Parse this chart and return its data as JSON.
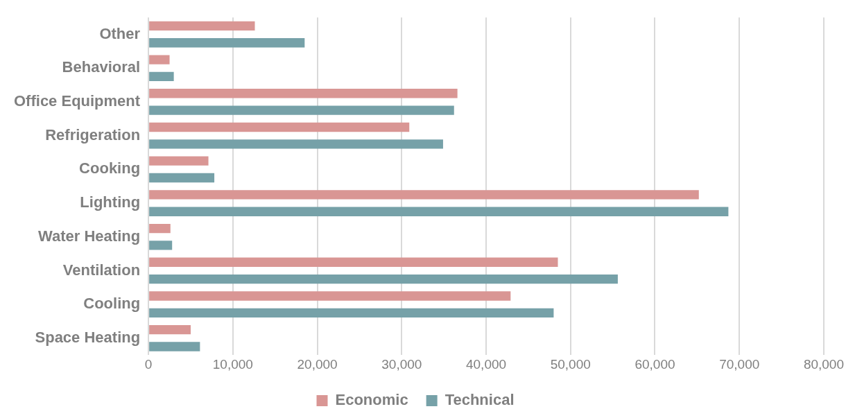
{
  "chart_data": {
    "type": "bar",
    "orientation": "horizontal",
    "categories": [
      "Other",
      "Behavioral",
      "Office Equipment",
      "Refrigeration",
      "Cooking",
      "Lighting",
      "Water Heating",
      "Ventilation",
      "Cooling",
      "Space Heating"
    ],
    "series": [
      {
        "name": "Economic",
        "color": "#d99694",
        "values": [
          12600,
          2500,
          36600,
          30900,
          7100,
          65200,
          2600,
          48500,
          42900,
          5000
        ]
      },
      {
        "name": "Technical",
        "color": "#76a1a8",
        "values": [
          18500,
          3000,
          36200,
          34900,
          7800,
          68700,
          2800,
          55600,
          48000,
          6100
        ]
      }
    ],
    "xlim": [
      0,
      80000
    ],
    "xticks": [
      {
        "value": 0,
        "label": "0"
      },
      {
        "value": 10000,
        "label": "10,000"
      },
      {
        "value": 20000,
        "label": "20,000"
      },
      {
        "value": 30000,
        "label": "30,000"
      },
      {
        "value": 40000,
        "label": "40,000"
      },
      {
        "value": 50000,
        "label": "50,000"
      },
      {
        "value": 60000,
        "label": "60,000"
      },
      {
        "value": 70000,
        "label": "70,000"
      },
      {
        "value": 80000,
        "label": "80,000"
      }
    ],
    "grid": "x",
    "legend": "bottom"
  }
}
